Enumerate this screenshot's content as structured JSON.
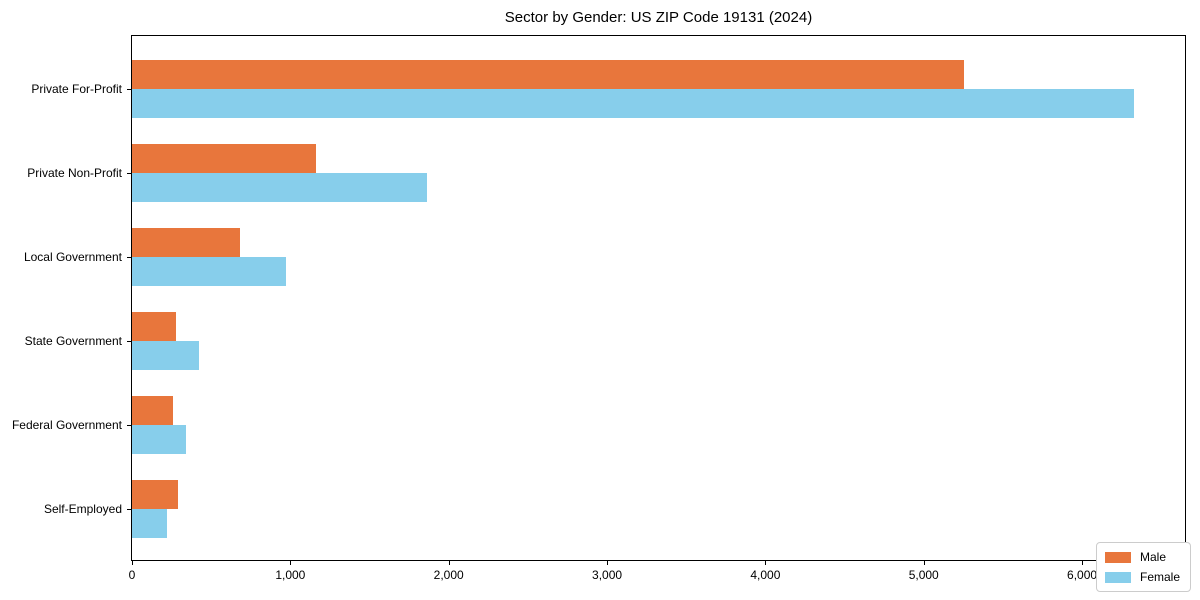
{
  "title": "Sector by Gender: US ZIP Code 19131 (2024)",
  "chart_data": {
    "type": "bar",
    "orientation": "horizontal",
    "title": "Sector by Gender: US ZIP Code 19131 (2024)",
    "categories": [
      "Private For-Profit",
      "Private Non-Profit",
      "Local Government",
      "State Government",
      "Federal Government",
      "Self-Employed"
    ],
    "series": [
      {
        "name": "Male",
        "color": "#e8763c",
        "values": [
          5255,
          1160,
          685,
          275,
          260,
          290
        ]
      },
      {
        "name": "Female",
        "color": "#87ceeb",
        "values": [
          6330,
          1860,
          975,
          420,
          340,
          220
        ]
      }
    ],
    "xlabel": "",
    "ylabel": "",
    "xlim": [
      0,
      6650
    ],
    "xticks": {
      "values": [
        0,
        1000,
        2000,
        3000,
        4000,
        5000,
        6000
      ],
      "labels": [
        "0",
        "1,000",
        "2,000",
        "3,000",
        "4,000",
        "5,000",
        "6,000"
      ]
    },
    "grid": false,
    "legend_position": "lower right"
  }
}
